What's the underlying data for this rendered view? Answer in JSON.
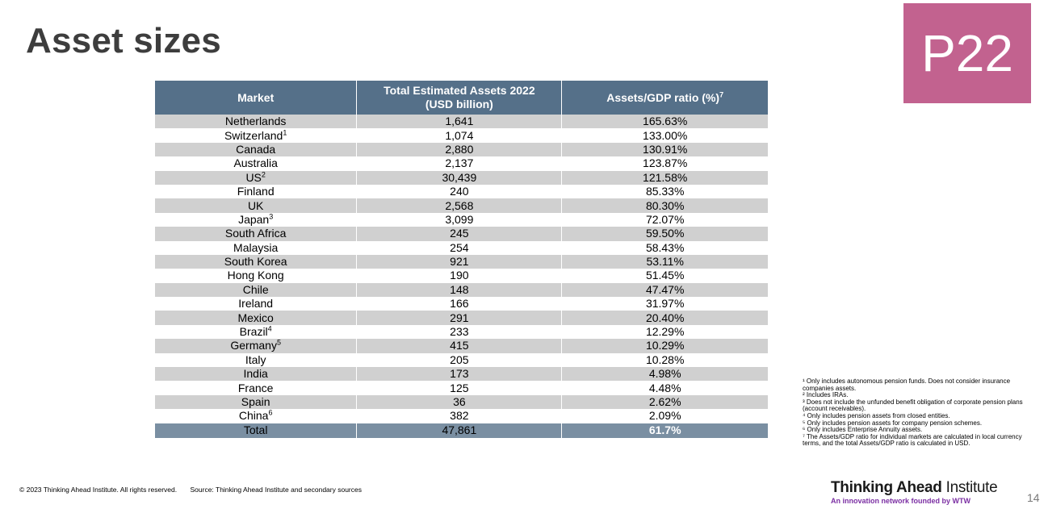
{
  "title": "Asset sizes",
  "badge": "P22",
  "table": {
    "headers": [
      "Market",
      "Total Estimated Assets 2022",
      "(USD billion)",
      "Assets/GDP ratio (%)",
      "7"
    ],
    "rows": [
      {
        "market": "Netherlands",
        "sup": "",
        "assets": "1,641",
        "ratio": "165.63%"
      },
      {
        "market": "Switzerland",
        "sup": "1",
        "assets": "1,074",
        "ratio": "133.00%"
      },
      {
        "market": "Canada",
        "sup": "",
        "assets": "2,880",
        "ratio": "130.91%"
      },
      {
        "market": "Australia",
        "sup": "",
        "assets": "2,137",
        "ratio": "123.87%"
      },
      {
        "market": "US",
        "sup": "2",
        "assets": "30,439",
        "ratio": "121.58%"
      },
      {
        "market": "Finland",
        "sup": "",
        "assets": "240",
        "ratio": "85.33%"
      },
      {
        "market": "UK",
        "sup": "",
        "assets": "2,568",
        "ratio": "80.30%"
      },
      {
        "market": "Japan",
        "sup": "3",
        "assets": "3,099",
        "ratio": "72.07%"
      },
      {
        "market": "South Africa",
        "sup": "",
        "assets": "245",
        "ratio": "59.50%"
      },
      {
        "market": "Malaysia",
        "sup": "",
        "assets": "254",
        "ratio": "58.43%"
      },
      {
        "market": "South Korea",
        "sup": "",
        "assets": "921",
        "ratio": "53.11%"
      },
      {
        "market": "Hong Kong",
        "sup": "",
        "assets": "190",
        "ratio": "51.45%"
      },
      {
        "market": "Chile",
        "sup": "",
        "assets": "148",
        "ratio": "47.47%"
      },
      {
        "market": "Ireland",
        "sup": "",
        "assets": "166",
        "ratio": "31.97%"
      },
      {
        "market": "Mexico",
        "sup": "",
        "assets": "291",
        "ratio": "20.40%"
      },
      {
        "market": "Brazil",
        "sup": "4",
        "assets": "233",
        "ratio": "12.29%"
      },
      {
        "market": "Germany",
        "sup": "5",
        "assets": "415",
        "ratio": "10.29%"
      },
      {
        "market": "Italy",
        "sup": "",
        "assets": "205",
        "ratio": "10.28%"
      },
      {
        "market": "India",
        "sup": "",
        "assets": "173",
        "ratio": "4.98%"
      },
      {
        "market": "France",
        "sup": "",
        "assets": "125",
        "ratio": "4.48%"
      },
      {
        "market": "Spain",
        "sup": "",
        "assets": "36",
        "ratio": "2.62%"
      },
      {
        "market": "China",
        "sup": "6",
        "assets": "382",
        "ratio": "2.09%"
      }
    ],
    "total": {
      "market": "Total",
      "assets": "47,861",
      "ratio": "61.7%"
    }
  },
  "notes": [
    "¹ Only includes autonomous pension funds. Does not consider insurance companies assets.",
    "² Includes IRAs.",
    "³ Does not include the unfunded benefit obligation of corporate pension plans (account receivables).",
    "⁴ Only includes pension assets from closed entities.",
    "⁵ Only includes pension assets for company pension schemes.",
    "⁶ Only includes Enterprise Annuity assets.",
    "⁷ The Assets/GDP ratio for individual markets are calculated in local currency terms, and the total Assets/GDP ratio is calculated in USD."
  ],
  "footer": {
    "copyright": "© 2023 Thinking Ahead Institute. All rights reserved.",
    "source": "Source: Thinking Ahead Institute and secondary sources"
  },
  "logo": {
    "name_bold": "Thinking Ahead",
    "name_light": "Institute",
    "tagline": "An innovation network founded by WTW"
  },
  "page_number": "14"
}
